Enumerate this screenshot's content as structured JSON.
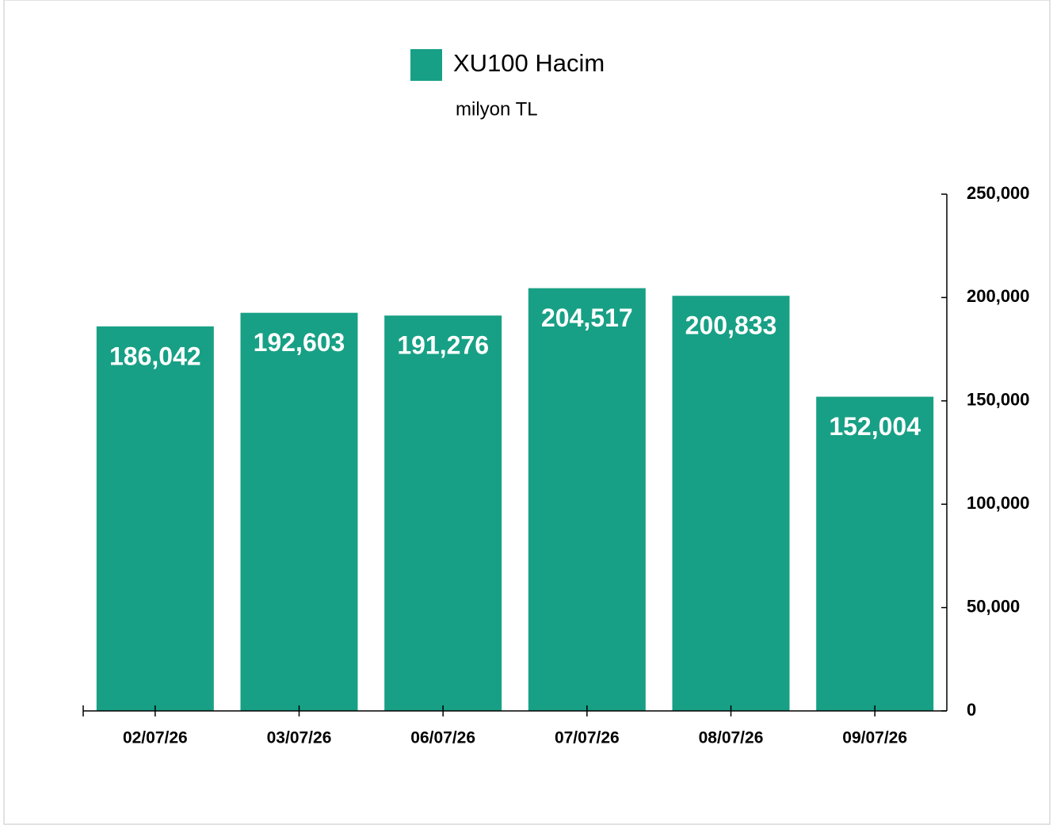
{
  "chart_data": {
    "type": "bar",
    "subtitle": "milyon TL",
    "categories": [
      "02/07/26",
      "03/07/26",
      "06/07/26",
      "07/07/26",
      "08/07/26",
      "09/07/26"
    ],
    "series": [
      {
        "name": "XU100 Hacim",
        "color": "#17a085",
        "values": [
          186042,
          192603,
          191276,
          204517,
          200833,
          152004
        ],
        "value_labels": [
          "186,042",
          "192,603",
          "191,276",
          "204,517",
          "200,833",
          "152,004"
        ]
      }
    ],
    "ylim": [
      0,
      250000
    ],
    "yticks": [
      0,
      {
        "value": 50000,
        "label": "50,000"
      },
      {
        "value": 100000,
        "label": "100,000"
      },
      {
        "value": 150000,
        "label": "150,000"
      },
      {
        "value": 200000,
        "label": "200,000"
      },
      {
        "value": 250000,
        "label": "250,000"
      }
    ],
    "y_axis_side": "right",
    "grid": false
  }
}
